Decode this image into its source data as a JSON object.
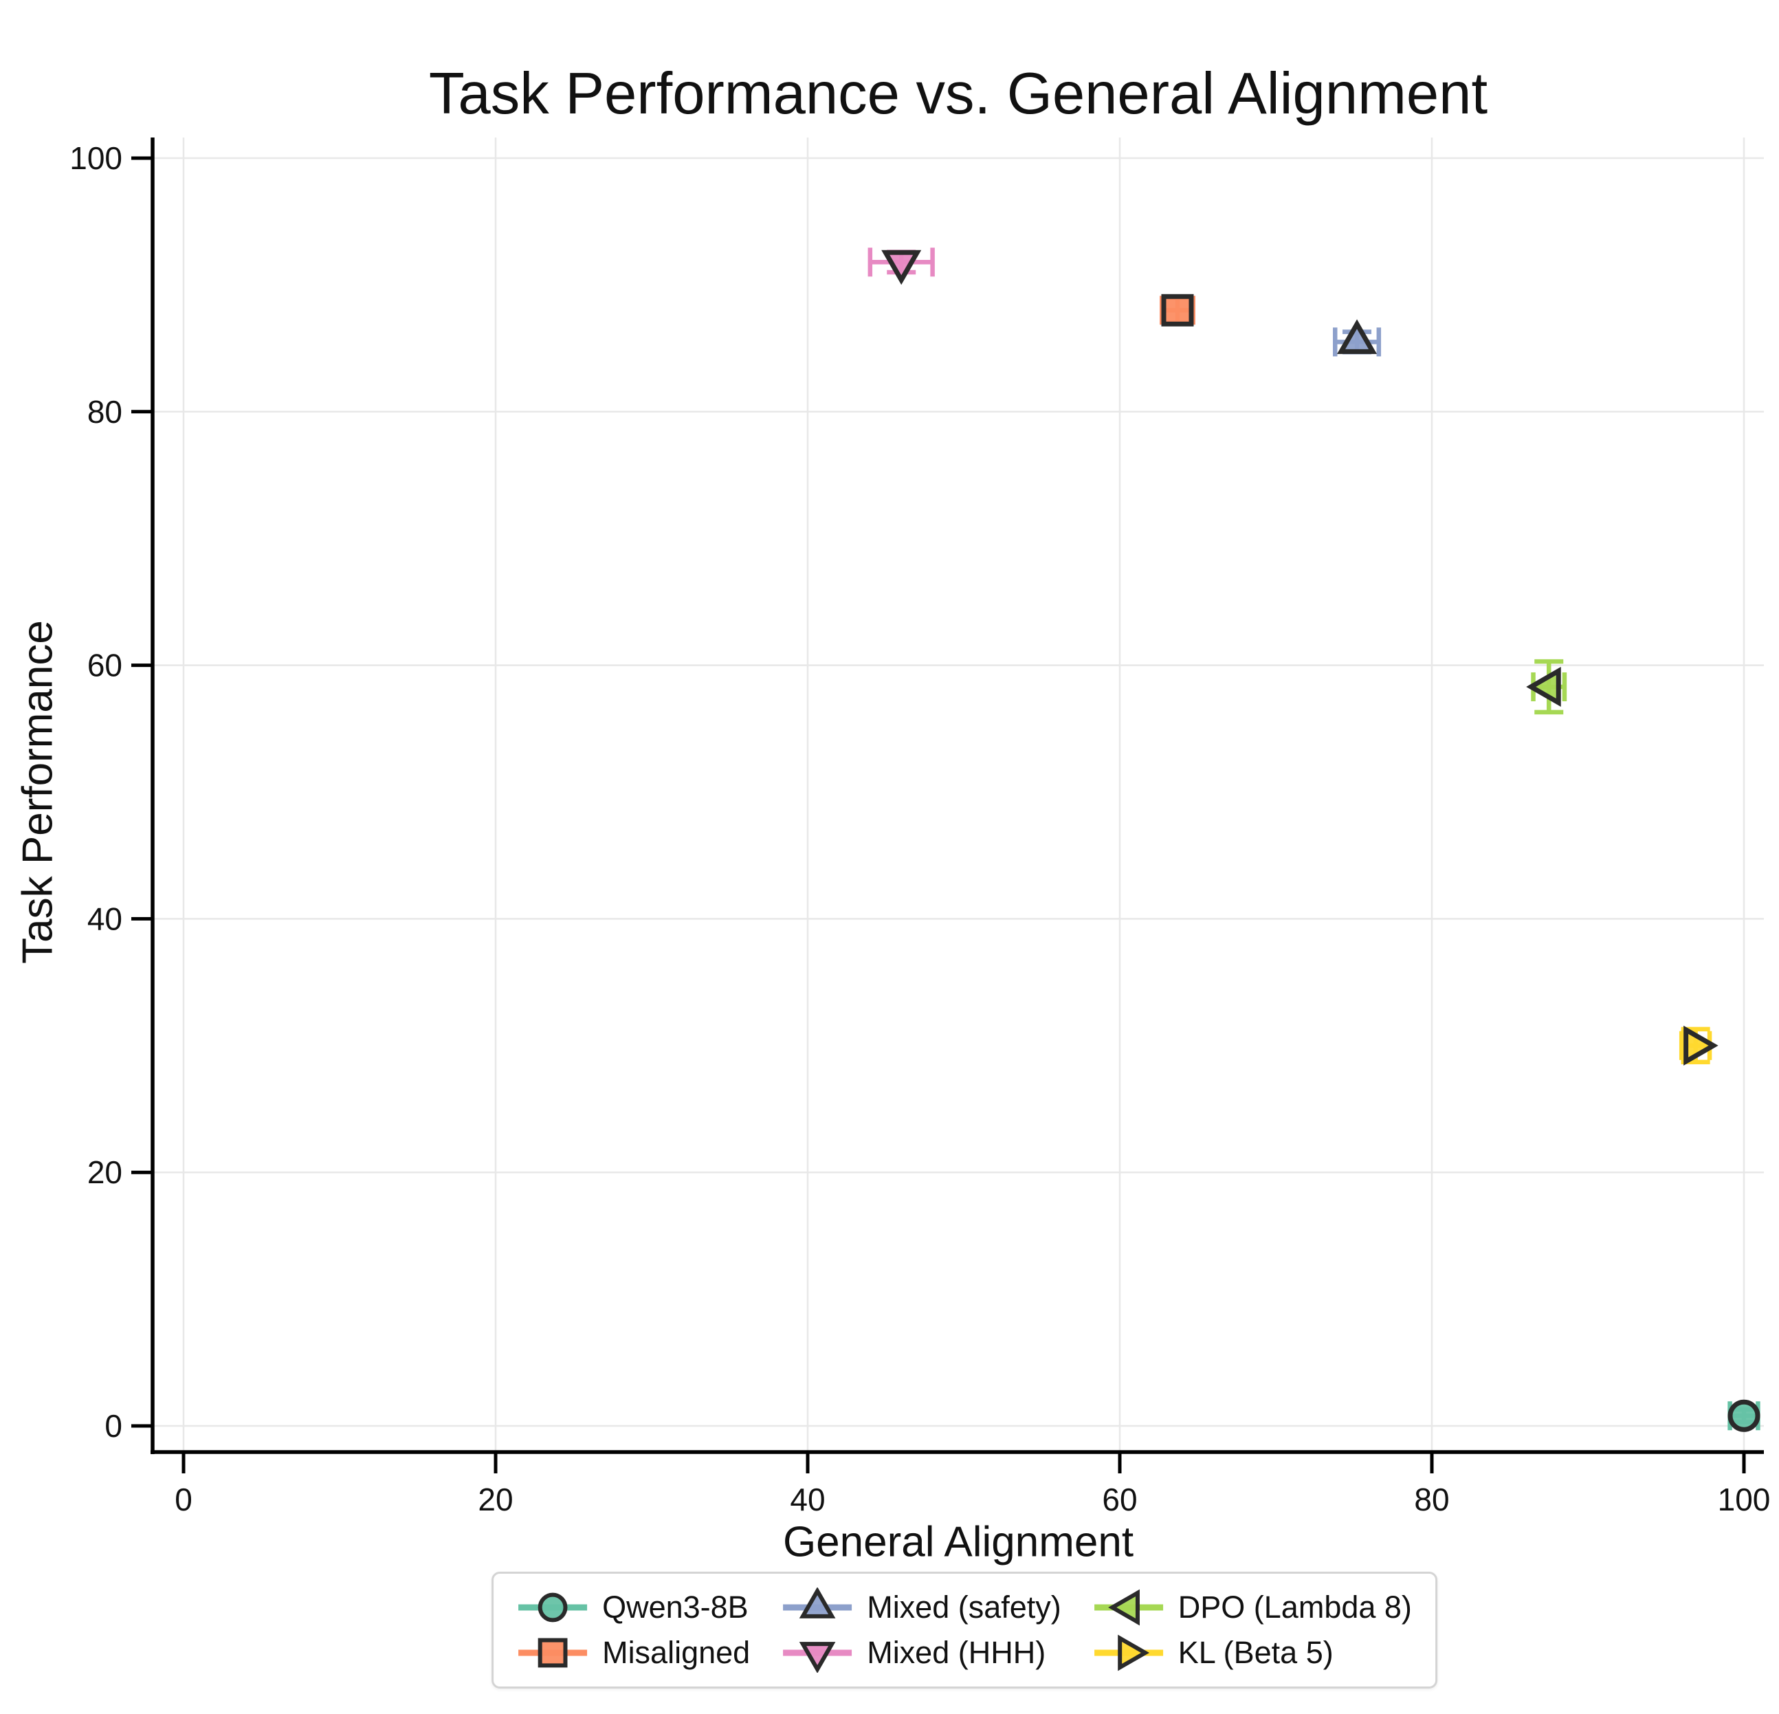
{
  "chart_data": {
    "type": "scatter",
    "title": "Task Performance vs. General Alignment",
    "xlabel": "General Alignment",
    "ylabel": "Task Performance",
    "xlim": [
      -2,
      101.3
    ],
    "ylim": [
      -2.1,
      101.6
    ],
    "xticks": [
      0,
      20,
      40,
      60,
      80,
      100
    ],
    "yticks": [
      0,
      20,
      40,
      60,
      80,
      100
    ],
    "grid": true,
    "grid_color": "#e8e8e8",
    "axis_color": "#000000",
    "marker_edge_color": "#2a2a2a",
    "legend_position": "bottom-center",
    "series": [
      {
        "name": "Qwen3-8B",
        "marker": "circle",
        "color": "#66c2a5",
        "x": 100,
        "y": 0.8,
        "xerr": 0.9,
        "yerr": 0.5
      },
      {
        "name": "Misaligned",
        "marker": "square",
        "color": "#fc8d62",
        "x": 63.7,
        "y": 88,
        "xerr": 1.0,
        "yerr": 1.0
      },
      {
        "name": "Mixed (safety)",
        "marker": "triangle-up",
        "color": "#8da0cb",
        "x": 75.2,
        "y": 85.5,
        "xerr": 1.4,
        "yerr": 0.8
      },
      {
        "name": "Mixed (HHH)",
        "marker": "triangle-down",
        "color": "#e78ac3",
        "x": 46,
        "y": 91.8,
        "xerr": 2.0,
        "yerr": 0.8
      },
      {
        "name": "DPO (Lambda 8)",
        "marker": "triangle-left",
        "color": "#a6d854",
        "x": 87.5,
        "y": 58.3,
        "xerr": 1.0,
        "yerr": 2.0
      },
      {
        "name": "KL (Beta 5)",
        "marker": "triangle-right",
        "color": "#ffd92f",
        "x": 96.9,
        "y": 30,
        "xerr": 0.9,
        "yerr": 1.3
      }
    ]
  }
}
